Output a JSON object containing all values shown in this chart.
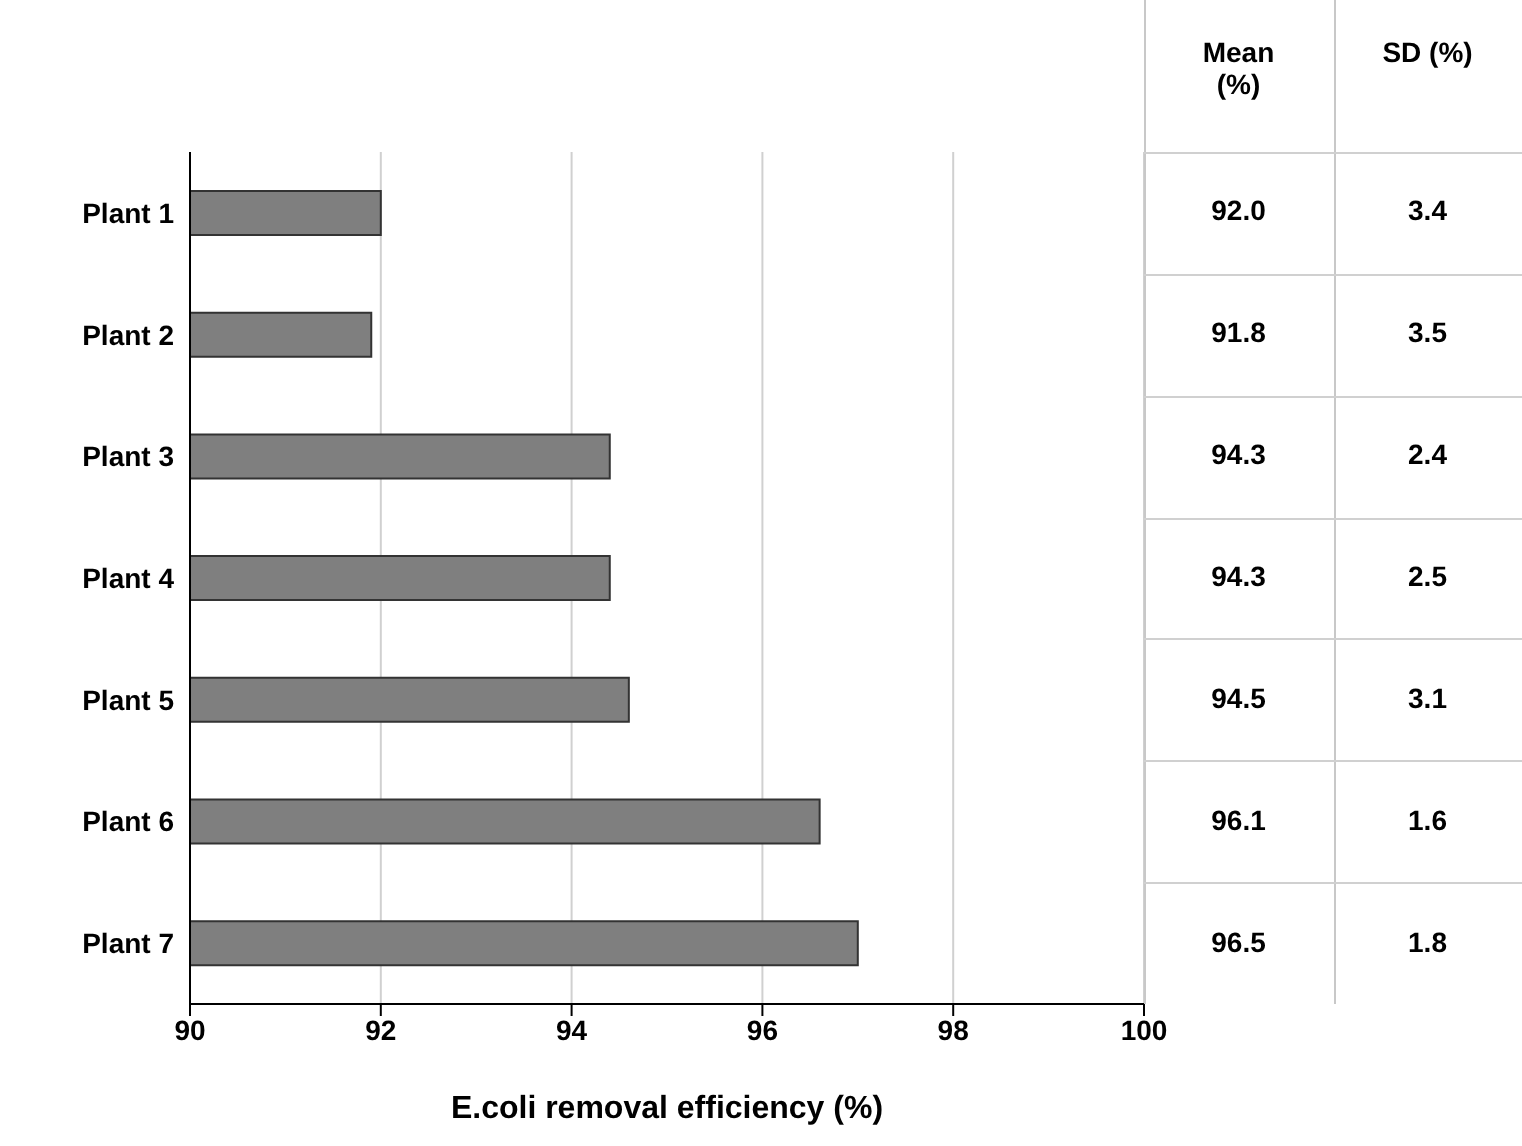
{
  "chart_data": [
    {
      "type": "bar",
      "orientation": "horizontal",
      "categories": [
        "Plant 1",
        "Plant 2",
        "Plant 3",
        "Plant 4",
        "Plant 5",
        "Plant 6",
        "Plant 7"
      ],
      "values": [
        92.0,
        91.9,
        94.4,
        94.4,
        94.6,
        96.6,
        97.0
      ],
      "color": "#7f7f7f",
      "xlim": [
        90,
        100
      ],
      "xticks": [
        90,
        92,
        94,
        96,
        98,
        100
      ],
      "xlabel": "E.coli removal efficiency  (%)",
      "grid": "x"
    },
    {
      "type": "other",
      "categories": [
        "Mean (%)",
        "SD (%)"
      ],
      "cell_labels": [
        [
          "92.0",
          "3.4"
        ],
        [
          "91.8",
          "3.5"
        ],
        [
          "94.3",
          "2.4"
        ],
        [
          "94.3",
          "2.5"
        ],
        [
          "94.5",
          "3.1"
        ],
        [
          "96.1",
          "1.6"
        ],
        [
          "96.5",
          "1.8"
        ]
      ]
    }
  ]
}
